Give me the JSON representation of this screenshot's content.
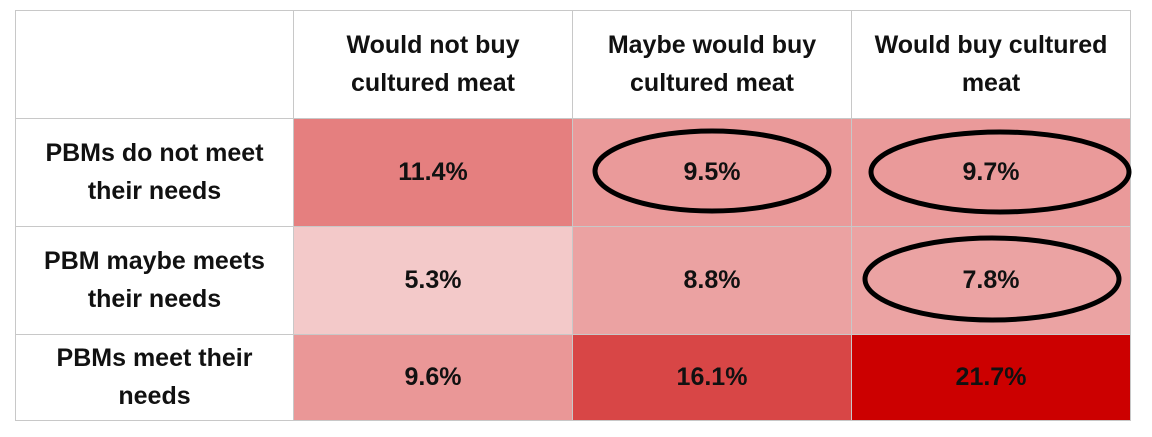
{
  "table": {
    "columns": [
      "Would not buy cultured meat",
      "Maybe would buy cultured meat",
      "Would buy cultured meat"
    ],
    "rows": [
      {
        "label": "PBMs do not meet their needs",
        "cells": [
          "11.4%",
          "9.5%",
          "9.7%"
        ],
        "colors": [
          "#e57f7f",
          "#ea9a9a",
          "#ea9a9a"
        ]
      },
      {
        "label": "PBM maybe meets their needs",
        "cells": [
          "5.3%",
          "8.8%",
          "7.8%"
        ],
        "colors": [
          "#f3c9c9",
          "#eba2a2",
          "#eba3a3"
        ]
      },
      {
        "label": "PBMs meet their needs",
        "cells": [
          "9.6%",
          "16.1%",
          "21.7%"
        ],
        "colors": [
          "#ea9797",
          "#d84646",
          "#cc0000"
        ]
      }
    ]
  }
}
